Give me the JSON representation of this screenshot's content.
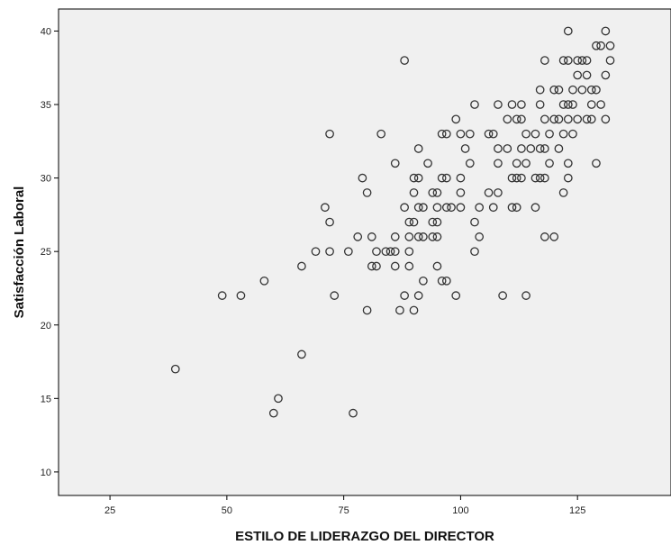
{
  "chart_data": {
    "type": "scatter",
    "title": "",
    "xlabel": "ESTILO DE LIDERAZGO DEL DIRECTOR",
    "ylabel": "Satisfacción Laboral",
    "xlim": [
      14,
      145
    ],
    "ylim": [
      8.4,
      41.5
    ],
    "xticks": [
      25,
      50,
      75,
      100,
      125
    ],
    "yticks": [
      10,
      15,
      20,
      25,
      30,
      35,
      40
    ],
    "grid": false,
    "colors": {
      "plot_bg": "#f0f0f0",
      "marker": "#333333"
    },
    "points": [
      [
        39,
        17
      ],
      [
        49,
        22
      ],
      [
        53,
        22
      ],
      [
        58,
        23
      ],
      [
        60,
        14
      ],
      [
        61,
        15
      ],
      [
        66,
        24
      ],
      [
        66,
        18
      ],
      [
        69,
        25
      ],
      [
        71,
        28
      ],
      [
        72,
        33
      ],
      [
        72,
        27
      ],
      [
        72,
        25
      ],
      [
        73,
        22
      ],
      [
        76,
        25
      ],
      [
        77,
        14
      ],
      [
        78,
        26
      ],
      [
        79,
        30
      ],
      [
        80,
        29
      ],
      [
        80,
        21
      ],
      [
        81,
        26
      ],
      [
        81,
        24
      ],
      [
        82,
        24
      ],
      [
        82,
        25
      ],
      [
        83,
        33
      ],
      [
        84,
        25
      ],
      [
        85,
        25
      ],
      [
        86,
        31
      ],
      [
        86,
        26
      ],
      [
        86,
        24
      ],
      [
        86,
        25
      ],
      [
        87,
        21
      ],
      [
        88,
        28
      ],
      [
        88,
        22
      ],
      [
        88,
        38
      ],
      [
        89,
        27
      ],
      [
        89,
        26
      ],
      [
        89,
        25
      ],
      [
        89,
        24
      ],
      [
        90,
        30
      ],
      [
        90,
        29
      ],
      [
        90,
        27
      ],
      [
        90,
        21
      ],
      [
        91,
        32
      ],
      [
        91,
        30
      ],
      [
        91,
        28
      ],
      [
        91,
        26
      ],
      [
        91,
        22
      ],
      [
        92,
        28
      ],
      [
        92,
        26
      ],
      [
        92,
        23
      ],
      [
        93,
        31
      ],
      [
        94,
        29
      ],
      [
        94,
        27
      ],
      [
        94,
        26
      ],
      [
        95,
        29
      ],
      [
        95,
        28
      ],
      [
        95,
        27
      ],
      [
        95,
        26
      ],
      [
        95,
        24
      ],
      [
        96,
        33
      ],
      [
        96,
        30
      ],
      [
        96,
        23
      ],
      [
        97,
        33
      ],
      [
        97,
        30
      ],
      [
        97,
        28
      ],
      [
        97,
        23
      ],
      [
        98,
        28
      ],
      [
        99,
        34
      ],
      [
        99,
        22
      ],
      [
        100,
        33
      ],
      [
        100,
        30
      ],
      [
        100,
        29
      ],
      [
        100,
        28
      ],
      [
        101,
        32
      ],
      [
        102,
        33
      ],
      [
        102,
        31
      ],
      [
        103,
        35
      ],
      [
        103,
        27
      ],
      [
        103,
        25
      ],
      [
        104,
        28
      ],
      [
        104,
        26
      ],
      [
        106,
        29
      ],
      [
        106,
        33
      ],
      [
        107,
        33
      ],
      [
        107,
        28
      ],
      [
        108,
        35
      ],
      [
        108,
        29
      ],
      [
        108,
        31
      ],
      [
        108,
        32
      ],
      [
        109,
        22
      ],
      [
        110,
        34
      ],
      [
        110,
        32
      ],
      [
        111,
        35
      ],
      [
        111,
        30
      ],
      [
        111,
        28
      ],
      [
        112,
        34
      ],
      [
        112,
        31
      ],
      [
        112,
        30
      ],
      [
        112,
        28
      ],
      [
        113,
        35
      ],
      [
        113,
        34
      ],
      [
        113,
        32
      ],
      [
        113,
        30
      ],
      [
        114,
        33
      ],
      [
        114,
        31
      ],
      [
        114,
        22
      ],
      [
        115,
        32
      ],
      [
        116,
        33
      ],
      [
        116,
        30
      ],
      [
        116,
        28
      ],
      [
        117,
        36
      ],
      [
        117,
        32
      ],
      [
        117,
        30
      ],
      [
        117,
        35
      ],
      [
        118,
        38
      ],
      [
        118,
        34
      ],
      [
        118,
        32
      ],
      [
        118,
        30
      ],
      [
        118,
        26
      ],
      [
        119,
        33
      ],
      [
        119,
        31
      ],
      [
        120,
        36
      ],
      [
        120,
        34
      ],
      [
        120,
        26
      ],
      [
        121,
        36
      ],
      [
        121,
        34
      ],
      [
        121,
        32
      ],
      [
        122,
        38
      ],
      [
        122,
        35
      ],
      [
        122,
        33
      ],
      [
        122,
        29
      ],
      [
        123,
        40
      ],
      [
        123,
        38
      ],
      [
        123,
        35
      ],
      [
        123,
        31
      ],
      [
        123,
        30
      ],
      [
        123,
        34
      ],
      [
        124,
        36
      ],
      [
        124,
        35
      ],
      [
        124,
        33
      ],
      [
        125,
        38
      ],
      [
        125,
        37
      ],
      [
        125,
        34
      ],
      [
        126,
        38
      ],
      [
        126,
        36
      ],
      [
        127,
        38
      ],
      [
        127,
        37
      ],
      [
        127,
        34
      ],
      [
        128,
        36
      ],
      [
        128,
        35
      ],
      [
        128,
        34
      ],
      [
        129,
        39
      ],
      [
        129,
        36
      ],
      [
        129,
        31
      ],
      [
        130,
        39
      ],
      [
        130,
        35
      ],
      [
        131,
        40
      ],
      [
        131,
        37
      ],
      [
        131,
        34
      ],
      [
        132,
        39
      ],
      [
        132,
        38
      ]
    ]
  }
}
